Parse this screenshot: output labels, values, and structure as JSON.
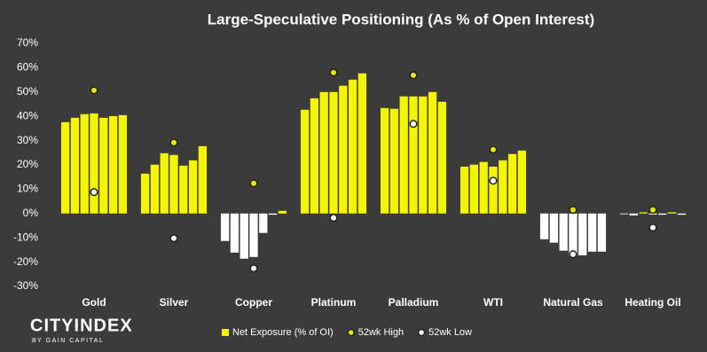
{
  "chart_data": {
    "type": "bar",
    "title": "Large-Speculative Positioning (As % of Open Interest)",
    "categories": [
      "Gold",
      "Silver",
      "Copper",
      "Platinum",
      "Palladium",
      "WTI",
      "Natural Gas",
      "Heating Oil"
    ],
    "series": [
      {
        "name": "Net Exposure (% of OI)",
        "mark": "bar",
        "color": "#f5f500",
        "negative_color": "#ffffff",
        "values": [
          [
            37.6,
            39.4,
            40.9,
            41.2,
            39.4,
            40.1,
            40.5
          ],
          [
            16.4,
            20.1,
            24.8,
            24.1,
            19.7,
            21.9,
            27.7
          ],
          [
            -11.3,
            -16.1,
            -18.6,
            -17.9,
            -8.0,
            -0.5,
            1.1
          ],
          [
            42.7,
            47.4,
            50.0,
            50.0,
            52.6,
            55.1,
            57.7
          ],
          [
            43.4,
            43.1,
            48.2,
            48.2,
            48.2,
            50.0,
            46.0
          ],
          [
            19.3,
            20.1,
            21.2,
            19.3,
            21.9,
            24.5,
            25.9
          ],
          [
            -10.6,
            -12.0,
            -15.3,
            -17.5,
            -17.2,
            -15.7,
            -15.7
          ],
          [
            -0.3,
            -0.8,
            0.5,
            -0.4,
            -0.5,
            0.5,
            -0.5
          ]
        ]
      },
      {
        "name": "52wk High",
        "mark": "dot",
        "color": "#e6e600",
        "values": [
          50.7,
          29.2,
          12.4,
          58.0,
          56.9,
          26.3,
          1.5,
          1.5
        ]
      },
      {
        "name": "52wk Low",
        "mark": "dot",
        "color": "#ffffff",
        "values": [
          8.8,
          -10.2,
          -22.6,
          -1.8,
          36.9,
          13.5,
          -16.8,
          -5.8
        ]
      }
    ],
    "ylim": [
      -30,
      70
    ],
    "yticks": [
      {
        "value": -30,
        "label": "-30%"
      },
      {
        "value": -20,
        "label": "-20%"
      },
      {
        "value": -10,
        "label": "-10%"
      },
      {
        "value": 0,
        "label": "0%"
      },
      {
        "value": 10,
        "label": "10%"
      },
      {
        "value": 20,
        "label": "20%"
      },
      {
        "value": 30,
        "label": "30%"
      },
      {
        "value": 40,
        "label": "40%"
      },
      {
        "value": 50,
        "label": "50%"
      },
      {
        "value": 60,
        "label": "60%"
      },
      {
        "value": 70,
        "label": "70%"
      }
    ],
    "grid": false,
    "legend": "bottom"
  },
  "branding": {
    "name": "CITYINDEX",
    "tagline": "BY GAIN CAPITAL"
  }
}
